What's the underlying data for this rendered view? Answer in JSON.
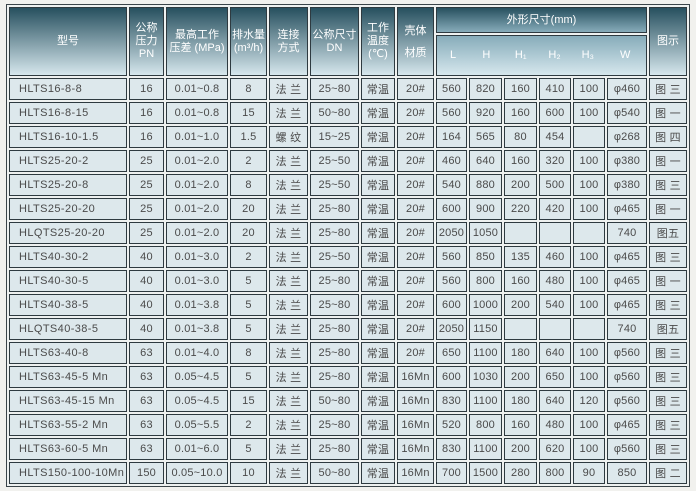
{
  "page": {
    "background_color": "#f1f1ee",
    "cell_background": "#dde8ec",
    "header_gradient_top": "#27505f",
    "header_gradient_bottom": "#d6e7ed",
    "border_color": "#2e3a40",
    "header_text_color": "#ffffff",
    "body_text_color": "#4a4a4a"
  },
  "table": {
    "headers": {
      "model": "型号",
      "pn": "公称\n压力\nPN",
      "pressure_diff": "最高工作\n压差 (MPa)",
      "drainage": "排水量\n(m³/h)",
      "connection": "连接\n方式",
      "dn": "公称尺寸\nDN",
      "temp": "工作\n温度\n(℃)",
      "material": "壳体\n材质",
      "dimensions": "外形尺寸(mm)",
      "dim_subs": [
        "L",
        "H",
        "H₁",
        "H₂",
        "H₃",
        "W"
      ],
      "figure": "图示"
    },
    "rows": [
      [
        "HLTS16-8-8",
        "16",
        "0.01~0.8",
        "8",
        "法 兰",
        "25~80",
        "常温",
        "20#",
        "560",
        "820",
        "160",
        "410",
        "100",
        "φ460",
        "图 三"
      ],
      [
        "HLTS16-8-15",
        "16",
        "0.01~0.8",
        "15",
        "法 兰",
        "50~80",
        "常温",
        "20#",
        "560",
        "920",
        "160",
        "600",
        "100",
        "φ540",
        "图 一"
      ],
      [
        "HLTS16-10-1.5",
        "16",
        "0.01~1.0",
        "1.5",
        "螺 纹",
        "15~25",
        "常温",
        "20#",
        "164",
        "565",
        "80",
        "454",
        "",
        "φ268",
        "图 四"
      ],
      [
        "HLTS25-20-2",
        "25",
        "0.01~2.0",
        "2",
        "法 兰",
        "25~50",
        "常温",
        "20#",
        "460",
        "640",
        "160",
        "320",
        "100",
        "φ380",
        "图 一"
      ],
      [
        "HLTS25-20-8",
        "25",
        "0.01~2.0",
        "8",
        "法 兰",
        "25~50",
        "常温",
        "20#",
        "540",
        "880",
        "200",
        "500",
        "100",
        "φ380",
        "图 三"
      ],
      [
        "HLTS25-20-20",
        "25",
        "0.01~2.0",
        "20",
        "法 兰",
        "25~80",
        "常温",
        "20#",
        "600",
        "900",
        "220",
        "420",
        "100",
        "φ465",
        "图 一"
      ],
      [
        "HLQTS25-20-20",
        "25",
        "0.01~2.0",
        "20",
        "法 兰",
        "25~80",
        "常温",
        "20#",
        "2050",
        "1050",
        "",
        "",
        "",
        "740",
        "图五"
      ],
      [
        "HLTS40-30-2",
        "40",
        "0.01~3.0",
        "2",
        "法 兰",
        "25~50",
        "常温",
        "20#",
        "560",
        "850",
        "135",
        "460",
        "100",
        "φ465",
        "图 三"
      ],
      [
        "HLTS40-30-5",
        "40",
        "0.01~3.0",
        "5",
        "法 兰",
        "25~80",
        "常温",
        "20#",
        "560",
        "800",
        "160",
        "480",
        "100",
        "φ465",
        "图 一"
      ],
      [
        "HLTS40-38-5",
        "40",
        "0.01~3.8",
        "5",
        "法 兰",
        "25~80",
        "常温",
        "20#",
        "600",
        "1000",
        "200",
        "540",
        "100",
        "φ465",
        "图 三"
      ],
      [
        "HLQTS40-38-5",
        "40",
        "0.01~3.8",
        "5",
        "法 兰",
        "25~80",
        "常温",
        "20#",
        "2050",
        "1150",
        "",
        "",
        "",
        "740",
        "图五"
      ],
      [
        "HLTS63-40-8",
        "63",
        "0.01~4.0",
        "8",
        "法 兰",
        "25~80",
        "常温",
        "20#",
        "650",
        "1100",
        "180",
        "640",
        "100",
        "φ560",
        "图 三"
      ],
      [
        "HLTS63-45-5 Mn",
        "63",
        "0.05~4.5",
        "5",
        "法 兰",
        "25~80",
        "常温",
        "16Mn",
        "600",
        "1030",
        "200",
        "650",
        "100",
        "φ560",
        "图 三"
      ],
      [
        "HLTS63-45-15 Mn",
        "63",
        "0.05~4.5",
        "15",
        "法 兰",
        "50~80",
        "常温",
        "16Mn",
        "830",
        "1100",
        "180",
        "640",
        "120",
        "φ560",
        "图 三"
      ],
      [
        "HLTS63-55-2 Mn",
        "63",
        "0.05~5.5",
        "2",
        "法 兰",
        "25~80",
        "常温",
        "16Mn",
        "520",
        "800",
        "160",
        "480",
        "100",
        "φ465",
        "图 三"
      ],
      [
        "HLTS63-60-5 Mn",
        "63",
        "0.01~6.0",
        "5",
        "法 兰",
        "25~80",
        "常温",
        "16Mn",
        "830",
        "1100",
        "200",
        "620",
        "100",
        "φ560",
        "图 三"
      ],
      [
        "HLTS150-100-10Mn",
        "150",
        "0.05~10.0",
        "10",
        "法 兰",
        "50~80",
        "常温",
        "16Mn",
        "700",
        "1500",
        "280",
        "800",
        "90",
        "850",
        "图 二"
      ]
    ]
  }
}
